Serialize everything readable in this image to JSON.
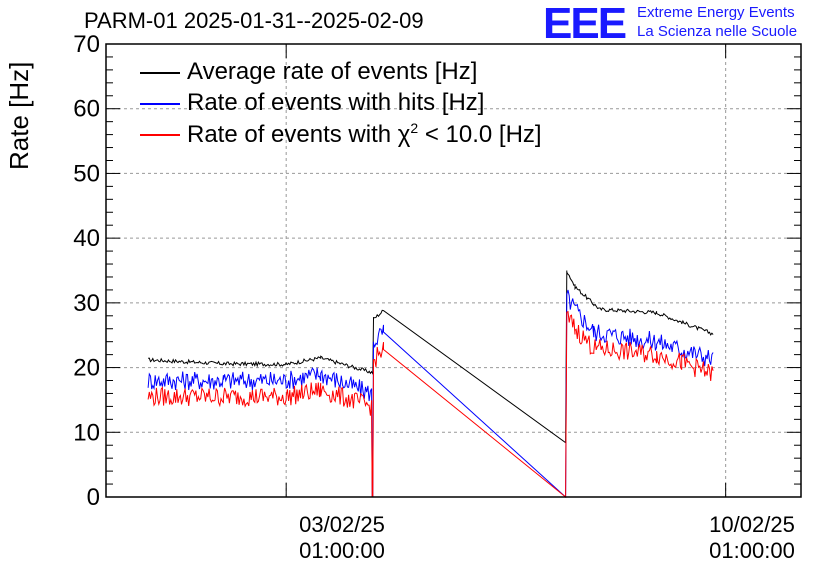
{
  "header": {
    "title": "PARM-01 2025-01-31--2025-02-09",
    "logo_text": "EEE",
    "logo_line1": "Extreme Energy Events",
    "logo_line2": "La Scienza nelle Scuole"
  },
  "chart_data": {
    "type": "line",
    "title": "PARM-01 2025-01-31--2025-02-09",
    "ylabel": "Rate [Hz]",
    "xlabel": "",
    "ylim": [
      0,
      70
    ],
    "yticks": [
      0,
      10,
      20,
      30,
      40,
      50,
      60,
      70
    ],
    "xlim_days": [
      -2.87,
      8.2
    ],
    "grid": true,
    "legend_position": "top-left",
    "xticks": [
      {
        "day": 0,
        "date": "03/02/25",
        "time": "01:00:00"
      },
      {
        "day": 7,
        "date": "10/02/25",
        "time": "01:00:00"
      }
    ],
    "series": [
      {
        "name": "Average rate of events [Hz]",
        "color": "#000000",
        "noise": 0.3,
        "points": [
          [
            -2.2,
            21.2
          ],
          [
            -1.0,
            20.6
          ],
          [
            0.0,
            20.5
          ],
          [
            0.55,
            21.5
          ],
          [
            1.38,
            19.2
          ],
          [
            1.39,
            27.5
          ],
          [
            1.55,
            28.8
          ],
          [
            4.45,
            8.4
          ],
          [
            4.47,
            35.0
          ],
          [
            4.6,
            32.5
          ],
          [
            4.9,
            29.8
          ],
          [
            5.0,
            29.0
          ],
          [
            5.9,
            28.5
          ],
          [
            6.3,
            27.0
          ],
          [
            6.8,
            25.2
          ]
        ]
      },
      {
        "name": "Rate of events with hits [Hz]",
        "color": "#0000ff",
        "noise": 1.5,
        "points": [
          [
            -2.2,
            18.0
          ],
          [
            -1.0,
            18.0
          ],
          [
            0.0,
            18.0
          ],
          [
            0.55,
            19.0
          ],
          [
            1.36,
            16.0
          ],
          [
            1.37,
            0.0
          ],
          [
            1.38,
            0.0
          ],
          [
            1.39,
            24.0
          ],
          [
            1.55,
            25.5
          ],
          [
            4.45,
            0.0
          ],
          [
            4.47,
            31.0
          ],
          [
            4.6,
            29.0
          ],
          [
            4.9,
            25.5
          ],
          [
            5.9,
            24.0
          ],
          [
            6.3,
            22.8
          ],
          [
            6.8,
            21.3
          ]
        ]
      },
      {
        "name": "Rate of events with χ² < 10.0 [Hz]",
        "color": "#ff0000",
        "noise": 1.5,
        "points": [
          [
            -2.2,
            15.5
          ],
          [
            -1.0,
            15.5
          ],
          [
            0.0,
            15.5
          ],
          [
            0.55,
            16.5
          ],
          [
            1.36,
            14.0
          ],
          [
            1.37,
            0.0
          ],
          [
            1.38,
            0.0
          ],
          [
            1.39,
            21.0
          ],
          [
            1.55,
            22.8
          ],
          [
            4.45,
            0.0
          ],
          [
            4.47,
            28.0
          ],
          [
            4.6,
            26.0
          ],
          [
            4.9,
            23.0
          ],
          [
            5.9,
            22.0
          ],
          [
            6.3,
            20.8
          ],
          [
            6.8,
            19.0
          ]
        ]
      }
    ]
  },
  "legend": {
    "items": [
      {
        "color": "#000000",
        "label": "Average rate of events [Hz]"
      },
      {
        "color": "#0000ff",
        "label": "Rate of events with hits [Hz]"
      },
      {
        "color": "#ff0000",
        "label_pre": "Rate of events with χ",
        "label_sup": "2",
        "label_post": " < 10.0 [Hz]"
      }
    ]
  }
}
